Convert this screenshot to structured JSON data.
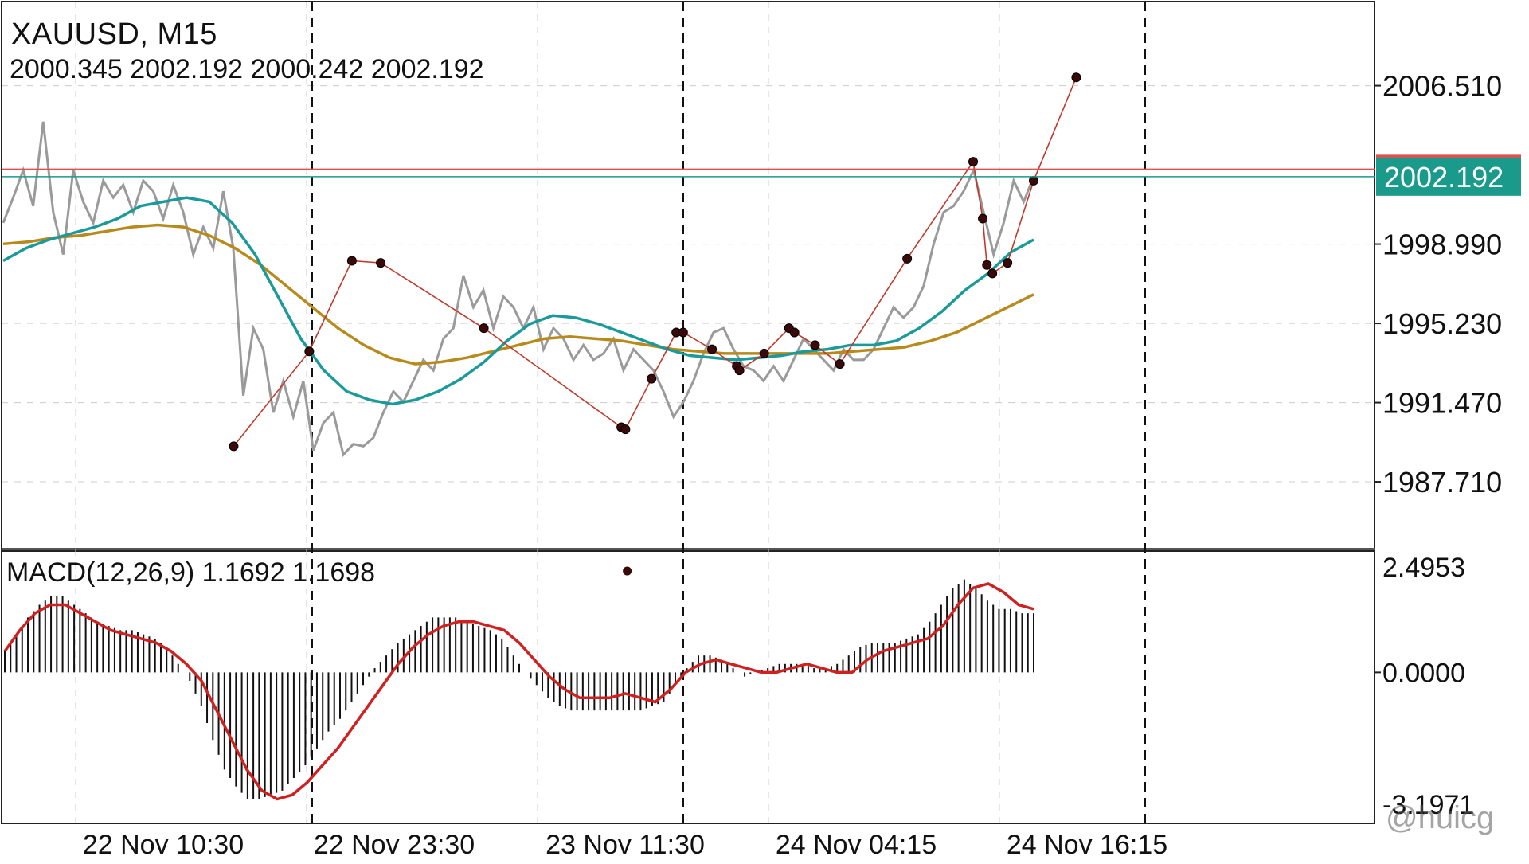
{
  "header": {
    "symbol_timeframe": "XAUUSD, M15",
    "ohlc": "2000.345 2002.192 2000.242 2002.192"
  },
  "macd": {
    "label": "MACD(12,26,9) 1.1692 1.1698",
    "scale_labels": [
      "2.4953",
      "0.0000",
      "-3.1971"
    ],
    "range": [
      -3.1971,
      2.4953
    ]
  },
  "colors": {
    "price_line": "#9a9a9a",
    "fast_ma": "#1a9a9a",
    "slow_ma": "#b88a1c",
    "zigzag": "#c0392b",
    "zigzag_point": "#3a0a0a",
    "current_price_badge": "#1a9a8a",
    "ask_badge": "#e05050",
    "macd_bars": "#111111",
    "macd_signal": "#d02020",
    "grid": "#cccccc"
  },
  "watermark": "@huicg",
  "chart_data": {
    "type": "line",
    "price_axis": {
      "labels": [
        "2006.510",
        "1998.990",
        "1995.230",
        "1991.470",
        "1987.710"
      ],
      "range": [
        1984.5,
        2010.5
      ],
      "current_price": "2002.192",
      "ask_price_partial": "2002.550"
    },
    "time_axis": {
      "labels": [
        "22 Nov 10:30",
        "22 Nov 23:30",
        "23 Nov 11:30",
        "24 Nov 04:15",
        "24 Nov 16:15"
      ]
    },
    "series": [
      {
        "name": "price",
        "values": [
          2000.0,
          2001.2,
          2002.5,
          2000.8,
          2004.8,
          2000.5,
          1998.5,
          2002.5,
          2001.0,
          2000.0,
          2002.0,
          2001.2,
          2001.8,
          2000.5,
          2002.0,
          2001.5,
          2000.2,
          2001.8,
          2000.5,
          1998.5,
          1999.8,
          1998.8,
          2001.5,
          1998.8,
          1991.8,
          1995.0,
          1994.0,
          1991.0,
          1992.5,
          1990.8,
          1992.5,
          1989.2,
          1990.5,
          1991.0,
          1989.0,
          1989.5,
          1989.4,
          1989.8,
          1991.0,
          1992.0,
          1991.5,
          1992.5,
          1993.5,
          1993.0,
          1994.5,
          1995.0,
          1997.5,
          1996.0,
          1996.8,
          1995.0,
          1996.5,
          1996.0,
          1995.0,
          1996.0,
          1994.0,
          1995.0,
          1994.5,
          1993.5,
          1994.2,
          1993.5,
          1993.8,
          1994.5,
          1993.0,
          1994.0,
          1993.5,
          1993.0,
          1992.0,
          1990.8,
          1991.5,
          1992.5,
          1993.8,
          1994.8,
          1995.0,
          1994.0,
          1993.2,
          1993.0,
          1992.5,
          1993.2,
          1992.5,
          1993.5,
          1994.5,
          1994.0,
          1993.5,
          1993.0,
          1994.0,
          1993.5,
          1993.5,
          1994.0,
          1995.0,
          1996.0,
          1995.5,
          1996.0,
          1997.0,
          1999.0,
          2000.5,
          2000.8,
          2001.5,
          2002.5,
          2000.5,
          1998.5,
          2000.0,
          2002.0,
          2001.0,
          2002.2
        ]
      },
      {
        "name": "fast_ma",
        "values": [
          1998.2,
          1998.8,
          1999.2,
          1999.5,
          1999.8,
          2000.2,
          2000.8,
          2001.0,
          2001.2,
          2001.0,
          2000.0,
          1998.5,
          1996.5,
          1994.5,
          1993.0,
          1992.0,
          1991.6,
          1991.4,
          1991.6,
          1992.0,
          1992.6,
          1993.4,
          1994.4,
          1995.2,
          1995.6,
          1995.5,
          1995.2,
          1994.8,
          1994.4,
          1994.0,
          1993.7,
          1993.6,
          1993.5,
          1993.6,
          1993.7,
          1993.9,
          1994.0,
          1994.2,
          1994.2,
          1994.4,
          1995.0,
          1995.8,
          1996.8,
          1997.6,
          1998.6,
          1999.2
        ]
      },
      {
        "name": "slow_ma",
        "values": [
          1999.0,
          1999.1,
          1999.3,
          1999.4,
          1999.6,
          1999.8,
          1999.9,
          1999.8,
          1999.4,
          1998.8,
          1998.0,
          1997.0,
          1996.0,
          1995.0,
          1994.2,
          1993.6,
          1993.3,
          1993.4,
          1993.6,
          1993.9,
          1994.2,
          1994.5,
          1994.6,
          1994.5,
          1994.4,
          1994.2,
          1994.0,
          1993.9,
          1993.8,
          1993.8,
          1993.8,
          1993.8,
          1993.8,
          1993.9,
          1994.0,
          1994.1,
          1994.4,
          1994.8,
          1995.4,
          1996.0,
          1996.6
        ]
      },
      {
        "name": "zigzag",
        "points": [
          [
            0.17,
            1989.4
          ],
          [
            0.225,
            1993.9
          ],
          [
            0.256,
            1998.2
          ],
          [
            0.277,
            1998.1
          ],
          [
            0.352,
            1995.0
          ],
          [
            0.452,
            1990.3
          ],
          [
            0.455,
            1990.2
          ],
          [
            0.474,
            1992.6
          ],
          [
            0.492,
            1994.8
          ],
          [
            0.497,
            1994.8
          ],
          [
            0.518,
            1994.0
          ],
          [
            0.536,
            1993.2
          ],
          [
            0.538,
            1993.0
          ],
          [
            0.556,
            1993.8
          ],
          [
            0.574,
            1995.0
          ],
          [
            0.578,
            1994.8
          ],
          [
            0.593,
            1994.2
          ],
          [
            0.611,
            1993.3
          ],
          [
            0.66,
            1998.3
          ],
          [
            0.708,
            2002.9
          ],
          [
            0.715,
            2000.2
          ],
          [
            0.718,
            1998.0
          ],
          [
            0.722,
            1997.6
          ],
          [
            0.733,
            1998.1
          ],
          [
            0.752,
            2002.0
          ],
          [
            0.783,
            2006.9
          ]
        ]
      }
    ],
    "macd_histogram": [
      0.5,
      0.9,
      1.3,
      1.6,
      1.8,
      1.8,
      1.6,
      1.4,
      1.2,
      1.1,
      1.0,
      1.0,
      0.9,
      0.8,
      0.6,
      0.2,
      -0.2,
      -0.8,
      -1.6,
      -2.3,
      -2.7,
      -3.0,
      -3.0,
      -2.9,
      -2.8,
      -2.5,
      -2.2,
      -1.8,
      -1.4,
      -1.1,
      -0.7,
      -0.3,
      0.1,
      0.4,
      0.7,
      0.9,
      1.1,
      1.3,
      1.3,
      1.3,
      1.2,
      1.1,
      1.0,
      0.8,
      0.4,
      0.0,
      -0.3,
      -0.6,
      -0.8,
      -0.9,
      -0.9,
      -0.9,
      -0.9,
      -0.9,
      -0.9,
      -0.9,
      -0.8,
      -0.7,
      -0.3,
      0.1,
      0.4,
      0.4,
      0.3,
      0.1,
      -0.1,
      0.0,
      0.1,
      0.2,
      0.2,
      0.2,
      0.1,
      0.1,
      0.2,
      0.4,
      0.6,
      0.7,
      0.7,
      0.7,
      0.8,
      0.9,
      1.2,
      1.6,
      2.0,
      2.2,
      2.0,
      1.7,
      1.5,
      1.5,
      1.4,
      1.4
    ],
    "macd_signal": [
      0.5,
      1.0,
      1.4,
      1.6,
      1.6,
      1.4,
      1.2,
      1.0,
      0.9,
      0.8,
      0.7,
      0.5,
      0.2,
      -0.2,
      -0.9,
      -1.6,
      -2.3,
      -2.8,
      -3.0,
      -2.9,
      -2.6,
      -2.2,
      -1.8,
      -1.3,
      -0.8,
      -0.3,
      0.2,
      0.6,
      0.9,
      1.1,
      1.2,
      1.2,
      1.1,
      1.0,
      0.7,
      0.3,
      -0.1,
      -0.4,
      -0.6,
      -0.6,
      -0.6,
      -0.5,
      -0.6,
      -0.7,
      -0.4,
      0.0,
      0.2,
      0.3,
      0.2,
      0.1,
      0.0,
      0.0,
      0.1,
      0.2,
      0.1,
      0.0,
      0.0,
      0.3,
      0.5,
      0.6,
      0.7,
      0.8,
      1.1,
      1.6,
      2.0,
      2.1,
      1.9,
      1.6,
      1.5
    ],
    "macd_range": [
      -3.1971,
      2.4953
    ],
    "isolated_point": [
      0.496,
      2.4
    ]
  }
}
